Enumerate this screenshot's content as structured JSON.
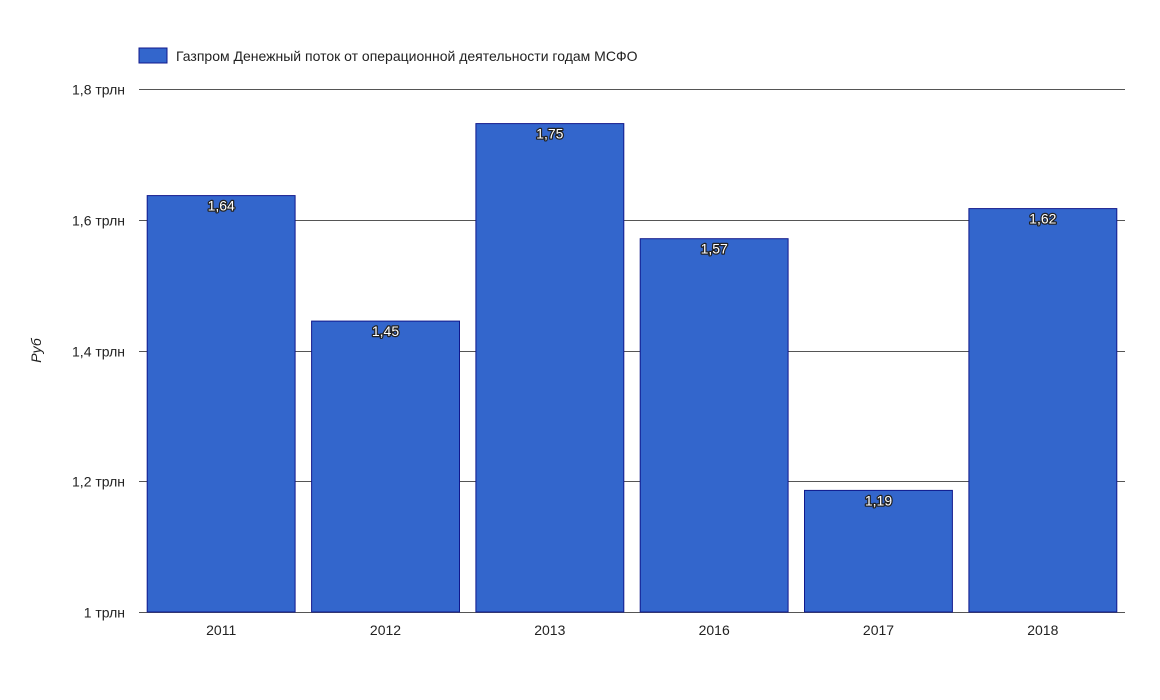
{
  "chart_data": {
    "type": "bar",
    "categories": [
      "2011",
      "2012",
      "2013",
      "2016",
      "2017",
      "2018"
    ],
    "series": [
      {
        "name": "Газпром Денежный поток от операционной деятельности годам МСФО",
        "values": [
          1.637,
          1.445,
          1.747,
          1.571,
          1.186,
          1.617
        ],
        "labels": [
          "1,64",
          "1,45",
          "1,75",
          "1,57",
          "1,19",
          "1,62"
        ],
        "color": "#3366cc"
      }
    ],
    "ylabel": "Руб",
    "xlabel": "",
    "ylim": [
      1.0,
      1.8
    ],
    "yticks": [
      {
        "value": 1.0,
        "label": "1 трлн"
      },
      {
        "value": 1.2,
        "label": "1,2 трлн"
      },
      {
        "value": 1.4,
        "label": "1,4 трлн"
      },
      {
        "value": 1.6,
        "label": "1,6 трлн"
      },
      {
        "value": 1.8,
        "label": "1,8 трлн"
      }
    ],
    "grid": true,
    "legend_position": "top-left"
  }
}
